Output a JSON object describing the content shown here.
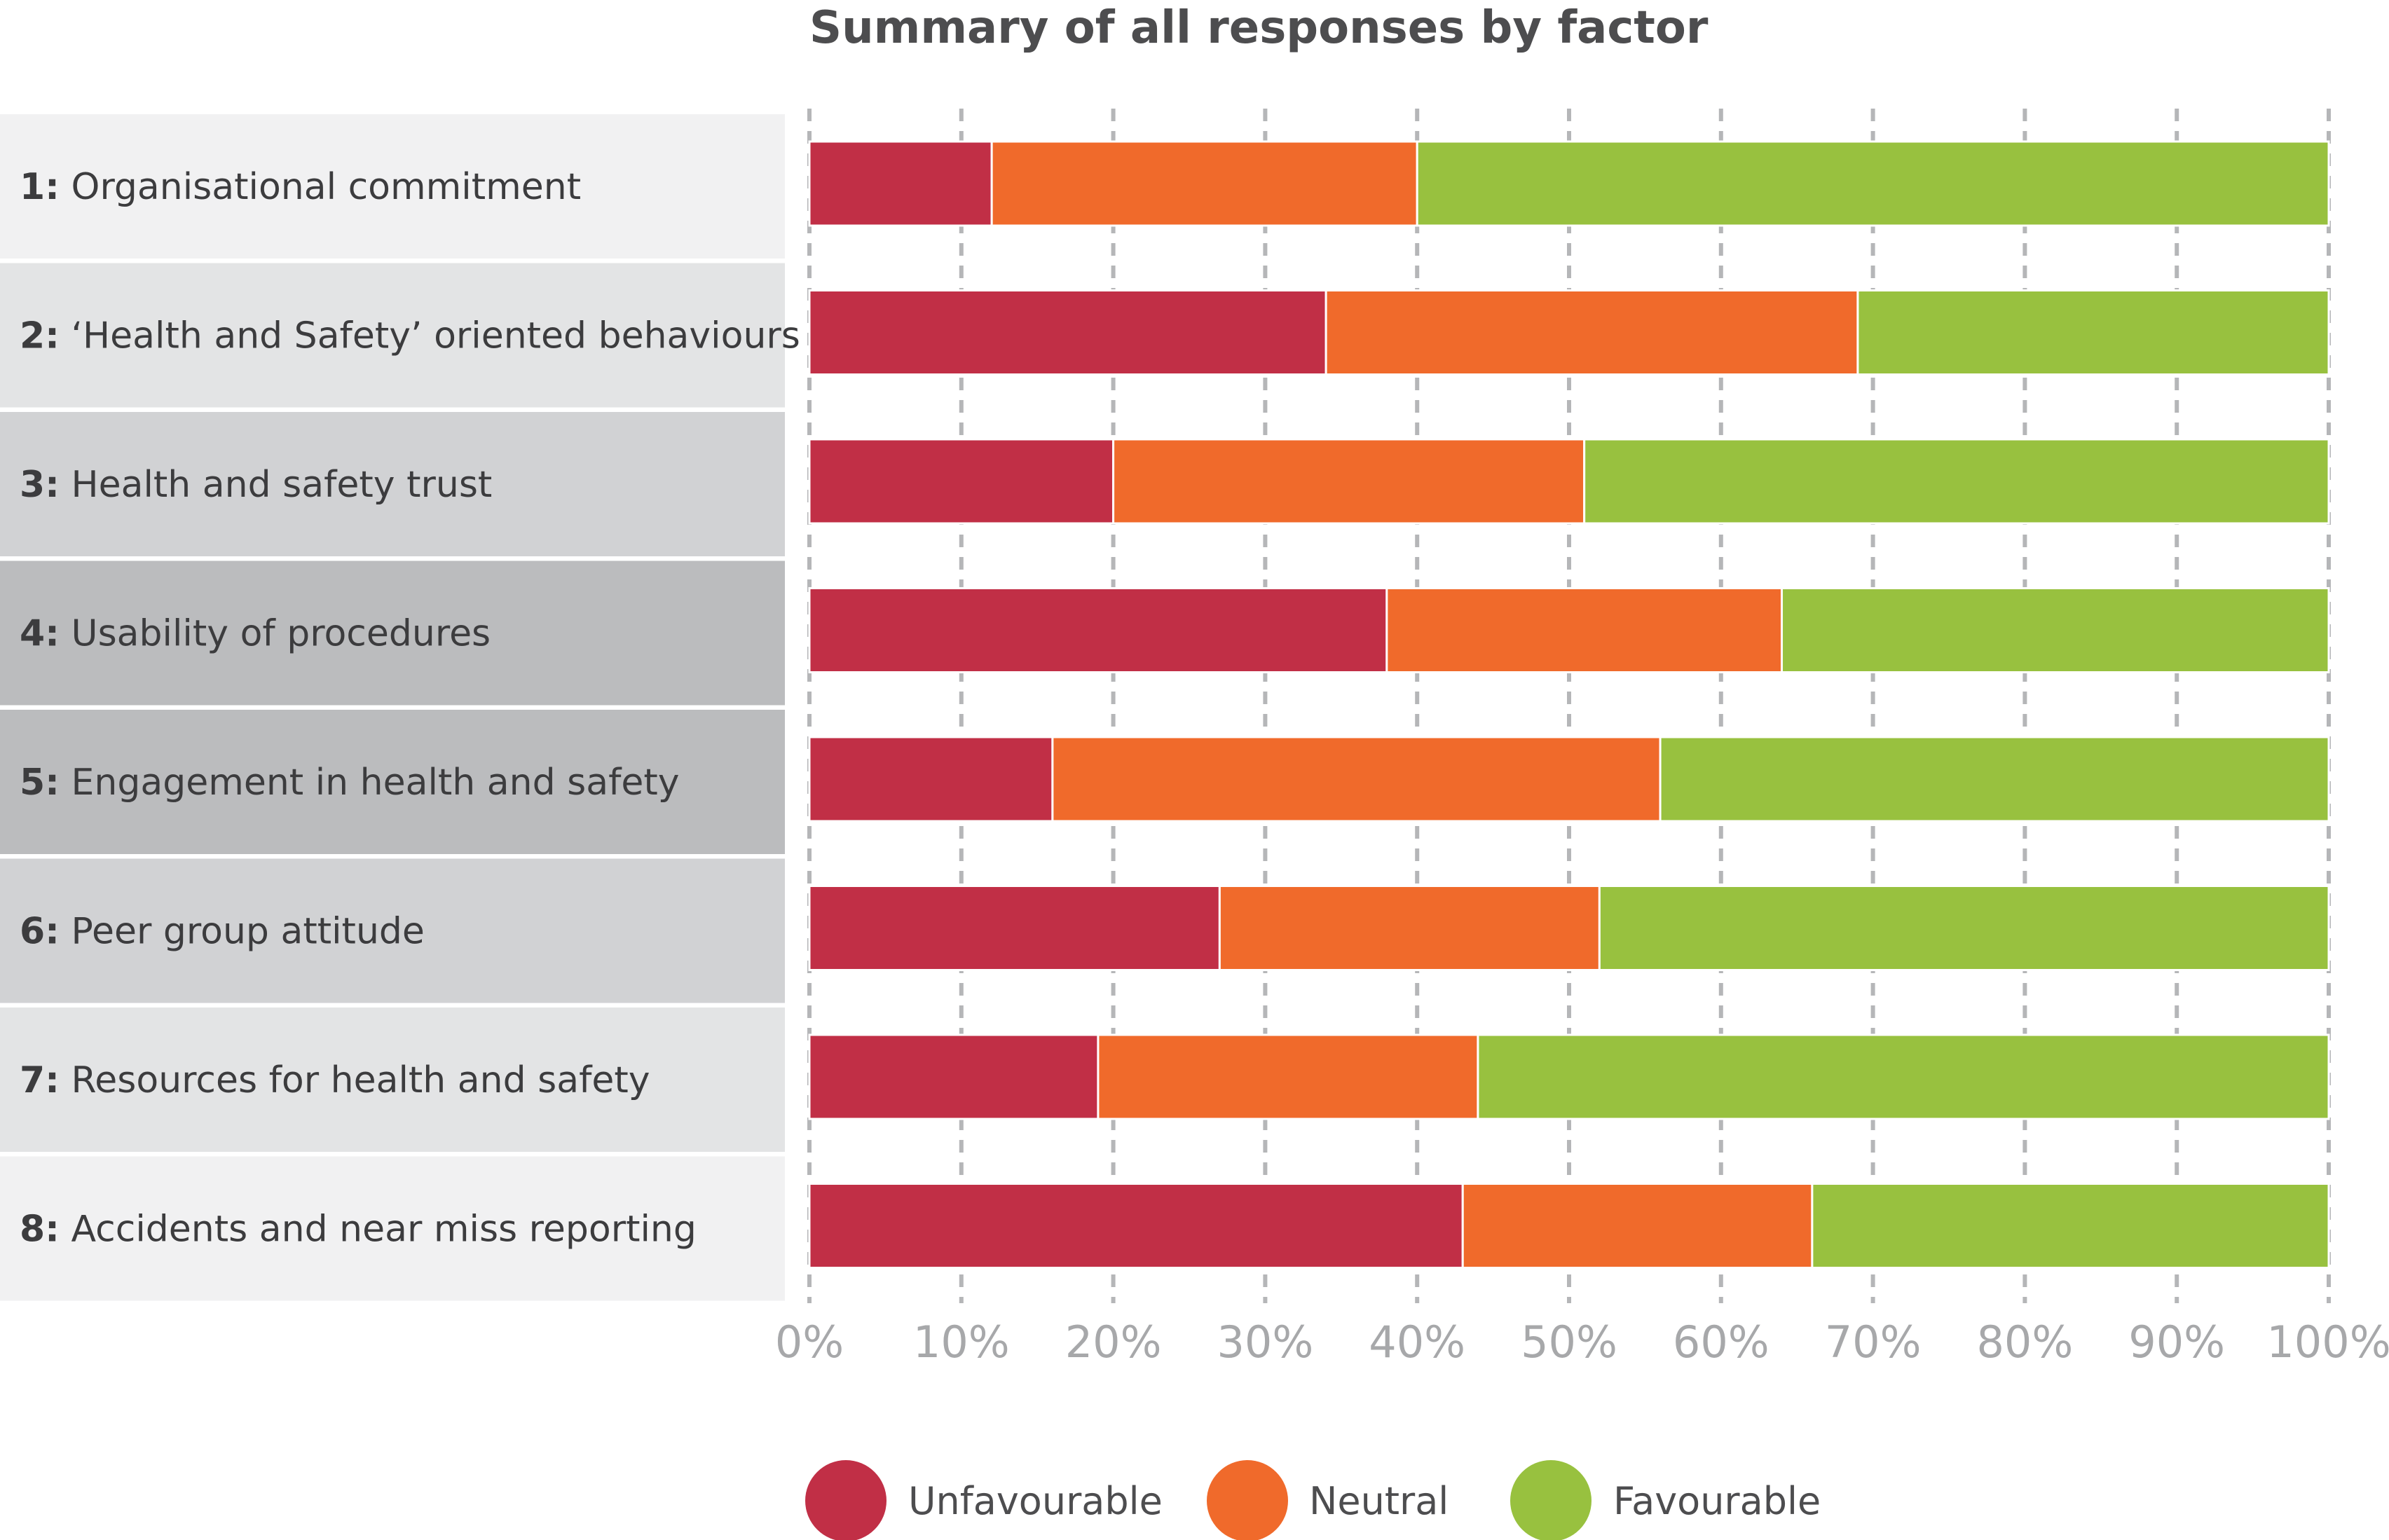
{
  "chart_data": {
    "type": "bar",
    "orientation": "horizontal",
    "stacked": true,
    "title": "Summary of all responses by factor",
    "categories": [
      {
        "num": "1:",
        "label": "Organisational commitment"
      },
      {
        "num": "2:",
        "label": "‘Health and Safety’ oriented behaviours"
      },
      {
        "num": "3:",
        "label": "Health and safety trust"
      },
      {
        "num": "4:",
        "label": "Usability of procedures"
      },
      {
        "num": "5:",
        "label": "Engagement in health and safety"
      },
      {
        "num": "6:",
        "label": "Peer group attitude"
      },
      {
        "num": "7:",
        "label": "Resources for health and safety"
      },
      {
        "num": "8:",
        "label": "Accidents and near miss reporting"
      }
    ],
    "series": [
      {
        "name": "Unfavourable",
        "color": "#c12f46",
        "values": [
          12,
          34,
          20,
          38,
          16,
          27,
          19,
          43
        ]
      },
      {
        "name": "Neutral",
        "color": "#f06a2b",
        "values": [
          28,
          35,
          31,
          26,
          40,
          25,
          25,
          23
        ]
      },
      {
        "name": "Favourable",
        "color": "#98c13f",
        "values": [
          60,
          31,
          49,
          36,
          44,
          48,
          56,
          34
        ]
      }
    ],
    "xlim": [
      0,
      100
    ],
    "x_ticks": [
      "0%",
      "10%",
      "20%",
      "30%",
      "40%",
      "50%",
      "60%",
      "70%",
      "80%",
      "90%",
      "100%"
    ],
    "row_backgrounds": [
      "#f1f1f2",
      "#e3e4e5",
      "#d1d2d4",
      "#bbbcbe",
      "#bbbcbe",
      "#d1d2d4",
      "#e3e4e5",
      "#f1f1f2"
    ],
    "grid": "vertical dashed",
    "legend_position": "bottom"
  }
}
